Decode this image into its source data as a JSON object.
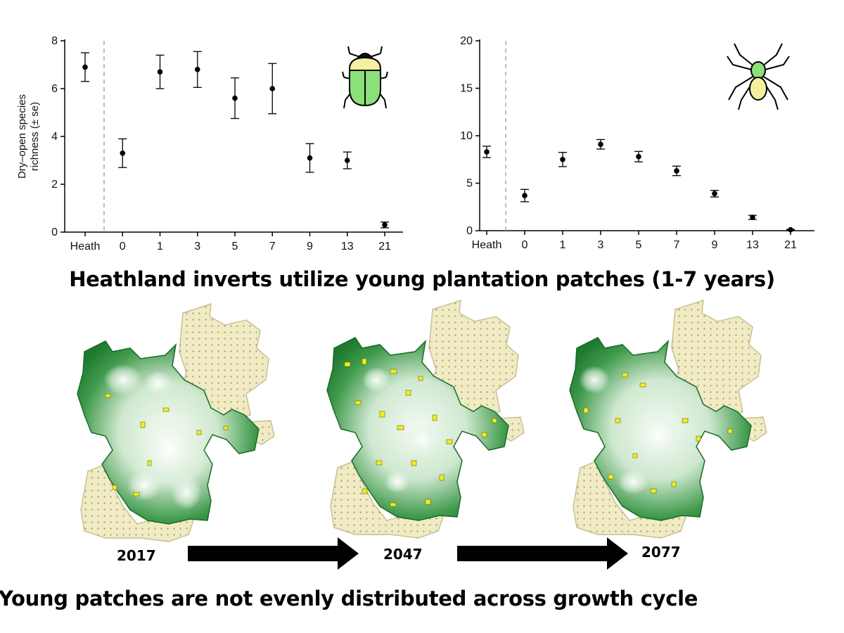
{
  "chart_data": [
    {
      "type": "scatter",
      "subtype": "point-with-error-bars",
      "title": "",
      "xlabel": "",
      "ylabel": "Dry–open species richness (± se)",
      "ylabel_lines": [
        "Dry–open species",
        "richness (± se)"
      ],
      "categories": [
        "Heath",
        "0",
        "1",
        "3",
        "5",
        "7",
        "9",
        "13",
        "21"
      ],
      "values": [
        6.9,
        3.3,
        6.7,
        6.8,
        5.6,
        6.0,
        3.1,
        3.0,
        0.3
      ],
      "se": [
        0.6,
        0.6,
        0.7,
        0.75,
        0.85,
        1.05,
        0.6,
        0.35,
        0.12
      ],
      "ylim": [
        0,
        8
      ],
      "yticks": [
        0,
        2,
        4,
        6,
        8
      ],
      "separator_after": "Heath",
      "icon": "beetle-icon"
    },
    {
      "type": "scatter",
      "subtype": "point-with-error-bars",
      "title": "",
      "xlabel": "",
      "ylabel": "",
      "categories": [
        "Heath",
        "0",
        "1",
        "3",
        "5",
        "7",
        "9",
        "13",
        "21"
      ],
      "values": [
        8.3,
        3.7,
        7.5,
        9.1,
        7.8,
        6.3,
        3.9,
        1.4,
        0.1
      ],
      "se": [
        0.6,
        0.65,
        0.75,
        0.5,
        0.55,
        0.5,
        0.35,
        0.22,
        0.05
      ],
      "ylim": [
        0,
        20
      ],
      "yticks": [
        0,
        5,
        10,
        15,
        20
      ],
      "separator_after": "Heath",
      "icon": "spider-icon"
    }
  ],
  "headlines": {
    "top": "Heathland inverts utilize young plantation patches (1-7 years)",
    "bottom": "Young patches are not evenly distributed across growth cycle"
  },
  "maps": {
    "years": [
      "2017",
      "2047",
      "2077"
    ],
    "young_patch_density": [
      "low",
      "high",
      "medium"
    ],
    "colors": {
      "forest_dark": "#1f7a2e",
      "forest_light": "#f2f8f2",
      "young_patch": "#f1ee1c",
      "heath": "#f0ebc3",
      "heath_dot": "#9a9a7a"
    }
  },
  "colors": {
    "point": "#000000",
    "separator": "#aaaaaa"
  }
}
